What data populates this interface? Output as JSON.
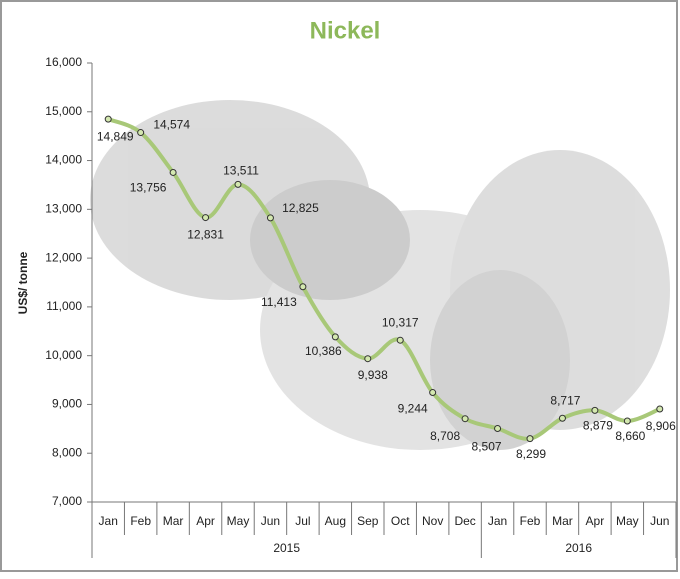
{
  "chart_data": {
    "type": "line",
    "title": "Nickel",
    "y_label": "US$/ tonne",
    "categories": [
      "Jan",
      "Feb",
      "Mar",
      "Apr",
      "May",
      "Jun",
      "Jul",
      "Aug",
      "Sep",
      "Oct",
      "Nov",
      "Dec",
      "Jan",
      "Feb",
      "Mar",
      "Apr",
      "May",
      "Jun"
    ],
    "year_labels": [
      "2015",
      "2016"
    ],
    "series": [
      {
        "name": "Nickel",
        "color": "#a8c878",
        "values": [
          14849,
          14574,
          13756,
          12831,
          13511,
          12825,
          11413,
          10386,
          9938,
          10317,
          9244,
          8708,
          8507,
          8299,
          8717,
          8879,
          8660,
          8906
        ],
        "value_labels": [
          "14,849",
          "14,574",
          "13,756",
          "12,831",
          "13,511",
          "12,825",
          "11,413",
          "10,386",
          "9,938",
          "10,317",
          "9,244",
          "8,708",
          "8,507",
          "8,299",
          "8,717",
          "8,879",
          "8,660",
          "8,906"
        ]
      }
    ],
    "ylim": [
      7000,
      16000
    ],
    "yticks": [
      {
        "value": 7000,
        "label": "7,000"
      },
      {
        "value": 8000,
        "label": "8,000"
      },
      {
        "value": 9000,
        "label": "9,000"
      },
      {
        "value": 10000,
        "label": "10,000"
      },
      {
        "value": 11000,
        "label": "11,000"
      },
      {
        "value": 12000,
        "label": "12,000"
      },
      {
        "value": 13000,
        "label": "13,000"
      },
      {
        "value": 14000,
        "label": "14,000"
      },
      {
        "value": 15000,
        "label": "15,000"
      },
      {
        "value": 16000,
        "label": "16,000"
      }
    ],
    "grid": false
  }
}
